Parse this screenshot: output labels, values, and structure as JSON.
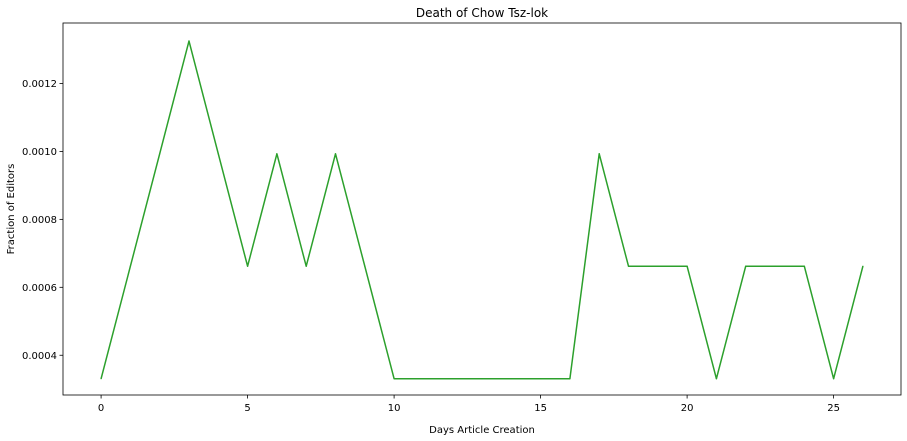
{
  "chart_data": {
    "type": "line",
    "title": "Death of Chow Tsz-lok",
    "xlabel": "Days Article Creation",
    "ylabel": "Fraction of Editors",
    "xlim": [
      -1.3,
      27.3
    ],
    "ylim": [
      0.000283,
      0.001378
    ],
    "xticks": [
      0,
      5,
      10,
      15,
      20,
      25
    ],
    "yticks": [
      0.0004,
      0.0006,
      0.0008,
      0.001,
      0.0012
    ],
    "ytick_labels": [
      "0.0004",
      "0.0006",
      "0.0008",
      "0.0010",
      "0.0012"
    ],
    "grid": false,
    "series": [
      {
        "color": "#2ca02c",
        "x": [
          0,
          1,
          2,
          3,
          4,
          5,
          6,
          7,
          8,
          9,
          10,
          11,
          12,
          13,
          14,
          15,
          16,
          17,
          18,
          19,
          20,
          21,
          22,
          23,
          24,
          25,
          26
        ],
        "y": [
          0.000331,
          0.000662,
          0.000993,
          0.001325,
          0.000993,
          0.000662,
          0.000993,
          0.000662,
          0.000993,
          0.000662,
          0.000331,
          0.000331,
          0.000331,
          0.000331,
          0.000331,
          0.000331,
          0.000331,
          0.000993,
          0.000662,
          0.000662,
          0.000662,
          0.000331,
          0.000662,
          0.000662,
          0.000662,
          0.000331,
          0.000662
        ]
      }
    ]
  }
}
